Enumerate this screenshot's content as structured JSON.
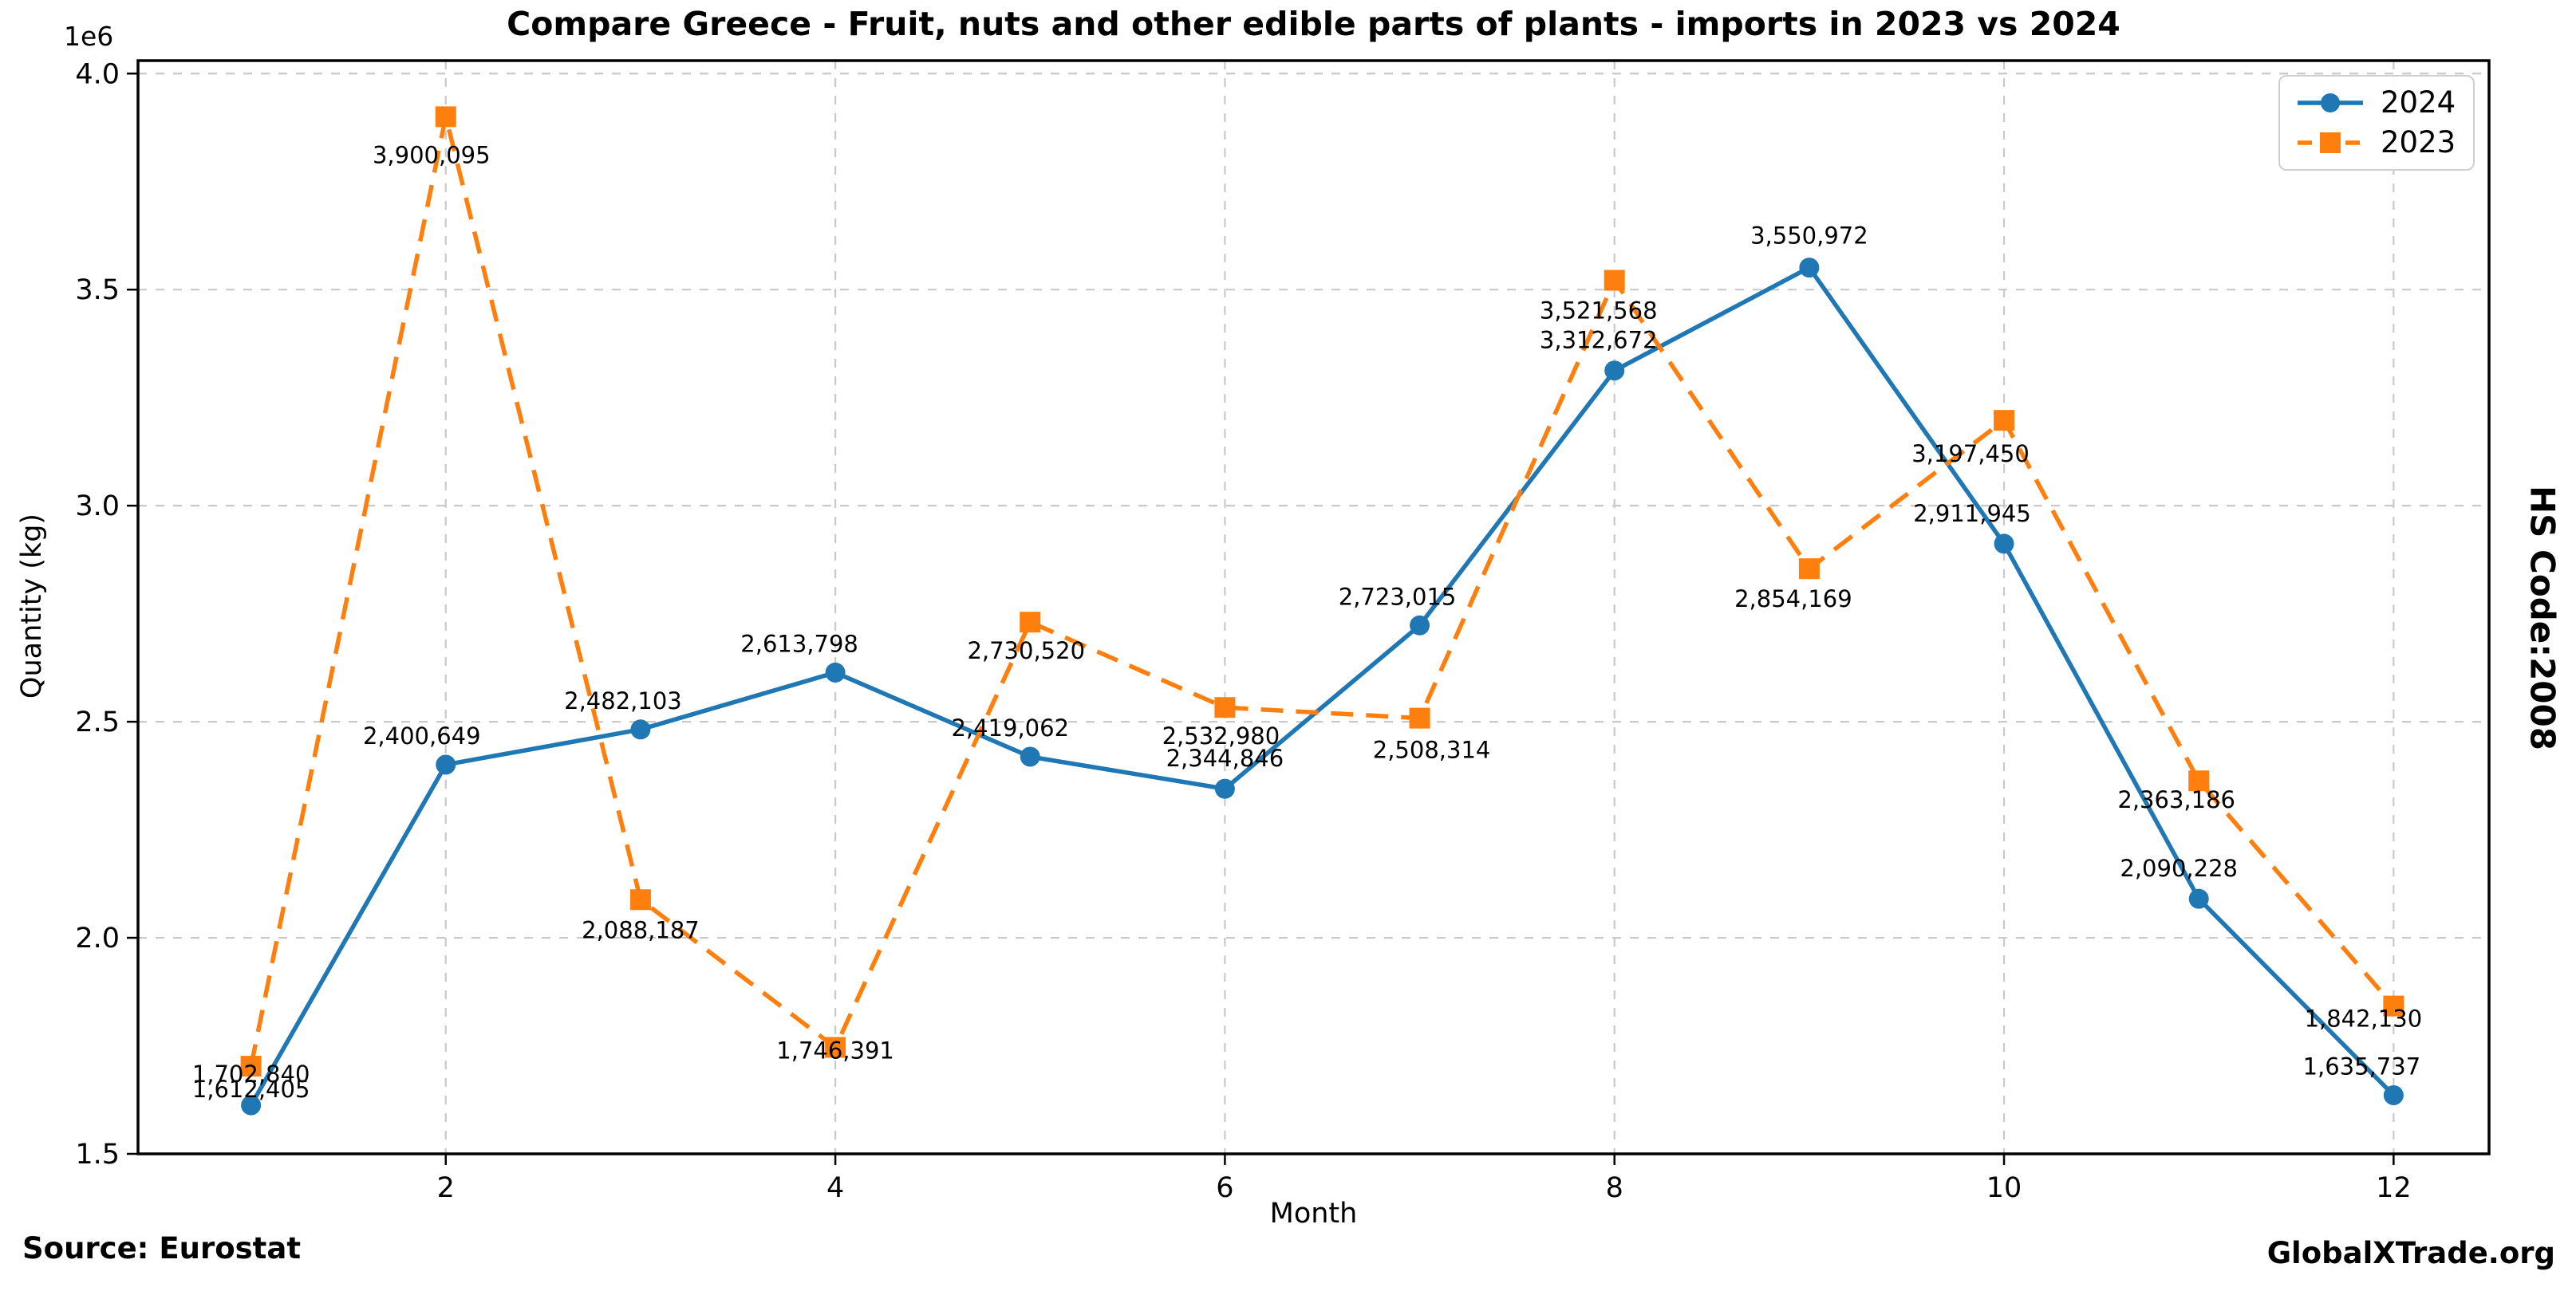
{
  "title": "Compare Greece - Fruit, nuts and other edible parts of plants - imports in 2023 vs 2024",
  "right_label": "HS Code:2008",
  "footer": {
    "source": "Source: Eurostat",
    "website": "GlobalXTrade.org"
  },
  "chart_data": {
    "type": "line",
    "title": "Compare Greece - Fruit, nuts and other edible parts of plants - imports in 2023 vs 2024",
    "xlabel": "Month",
    "ylabel": "Quantity (kg)",
    "offset_text": "1e6",
    "x": [
      1,
      2,
      3,
      4,
      5,
      6,
      7,
      8,
      9,
      10,
      11,
      12
    ],
    "xticks": [
      2,
      4,
      6,
      8,
      10,
      12
    ],
    "yticks": [
      1500000,
      2000000,
      2500000,
      3000000,
      3500000,
      4000000
    ],
    "xlim": [
      0.42,
      12.49
    ],
    "ylim": [
      1500000,
      4030000
    ],
    "grid": true,
    "grid_color": "#c9c9c9",
    "axis_color": "#000000",
    "legend_position": "upper right",
    "series": [
      {
        "name": "2024",
        "color": "#1f77b4",
        "marker": "circle",
        "line_style": "solid",
        "values": [
          1612405,
          2400649,
          2482103,
          2613798,
          2419062,
          2344846,
          2723015,
          3312672,
          3550972,
          2911945,
          2090228,
          1635737
        ],
        "label_offsets": [
          [
            0,
            -10
          ],
          [
            -30,
            -26
          ],
          [
            -22,
            -26
          ],
          [
            -45,
            -26
          ],
          [
            -25,
            -26
          ],
          [
            0,
            -28
          ],
          [
            -28,
            -26
          ],
          [
            -20,
            -28
          ],
          [
            0,
            -30
          ],
          [
            -40,
            -28
          ],
          [
            -25,
            -28
          ],
          [
            -40,
            -26
          ]
        ]
      },
      {
        "name": "2023",
        "color": "#ff7f0e",
        "marker": "square",
        "line_style": "dashed",
        "values": [
          1702840,
          3900095,
          2088187,
          1746391,
          2730520,
          2532980,
          2508314,
          3521568,
          2854169,
          3197450,
          2363186,
          1842130
        ],
        "label_offsets": [
          [
            0,
            20
          ],
          [
            -18,
            58
          ],
          [
            0,
            48
          ],
          [
            0,
            14
          ],
          [
            -5,
            46
          ],
          [
            -5,
            46
          ],
          [
            15,
            50
          ],
          [
            -20,
            48
          ],
          [
            -20,
            48
          ],
          [
            -42,
            52
          ],
          [
            -28,
            34
          ],
          [
            -38,
            26
          ]
        ]
      }
    ]
  }
}
